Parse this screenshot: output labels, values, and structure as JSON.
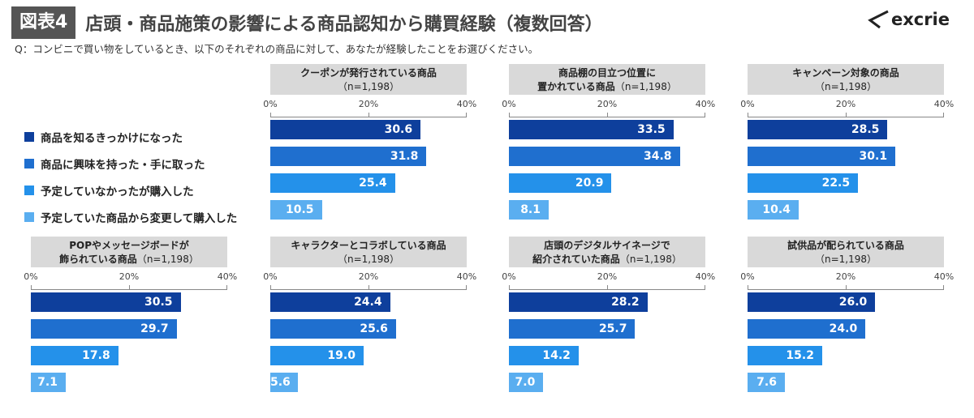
{
  "header": {
    "figure_label": "図表4",
    "title": "店頭・商品施策の影響による商品認知から購買経験（複数回答）",
    "question": "Q：コンビニで買い物をしているとき、以下のそれぞれの商品に対して、あなたが経験したことをお選びください。",
    "logo": "excrie"
  },
  "chart_data": {
    "type": "bar",
    "orientation": "horizontal",
    "xlim": [
      0,
      40
    ],
    "tick_labels": [
      "0%",
      "20%",
      "40%"
    ],
    "legend_placement": "left",
    "series": [
      {
        "name": "商品を知るきっかけになった",
        "color": "#0e3f9c"
      },
      {
        "name": "商品に興味を持った・手に取った",
        "color": "#1f6fcf"
      },
      {
        "name": "予定していなかったが購入した",
        "color": "#2491ea"
      },
      {
        "name": "予定していた商品から変更して購入した",
        "color": "#5aaef0"
      }
    ],
    "panels": [
      {
        "title_line1": "クーポンが発行されている商品",
        "title_line2": "",
        "n": "（n=1,198）",
        "values": [
          30.6,
          31.8,
          25.4,
          10.5
        ]
      },
      {
        "title_line1": "商品棚の目立つ位置に",
        "title_line2": "置かれている商品",
        "n": "（n=1,198）",
        "values": [
          33.5,
          34.8,
          20.9,
          8.1
        ]
      },
      {
        "title_line1": "キャンペーン対象の商品",
        "title_line2": "",
        "n": "（n=1,198）",
        "values": [
          28.5,
          30.1,
          22.5,
          10.4
        ]
      },
      {
        "title_line1": "POPやメッセージボードが",
        "title_line2": "飾られている商品",
        "n": "（n=1,198）",
        "values": [
          30.5,
          29.7,
          17.8,
          7.1
        ]
      },
      {
        "title_line1": "キャラクターとコラボしている商品",
        "title_line2": "",
        "n": "（n=1,198）",
        "values": [
          24.4,
          25.6,
          19.0,
          5.6
        ]
      },
      {
        "title_line1": "店頭のデジタルサイネージで",
        "title_line2": "紹介されていた商品",
        "n": "（n=1,198）",
        "values": [
          28.2,
          25.7,
          14.2,
          7.0
        ]
      },
      {
        "title_line1": "試供品が配られている商品",
        "title_line2": "",
        "n": "（n=1,198）",
        "values": [
          26.0,
          24.0,
          15.2,
          7.6
        ]
      }
    ]
  }
}
